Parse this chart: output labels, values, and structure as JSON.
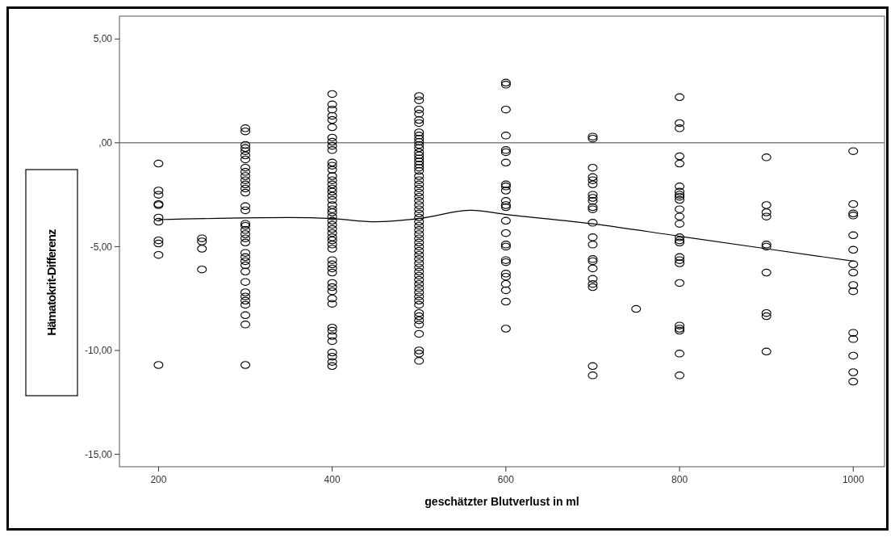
{
  "chart_data": {
    "type": "scatter",
    "xlabel": "geschätzter Blutverlust in ml",
    "ylabel": "Hämatokrit-Differenz",
    "xlim": [
      155,
      1036
    ],
    "ylim": [
      -15.6,
      6.1
    ],
    "xticks": [
      200,
      400,
      600,
      800,
      1000
    ],
    "yticks": [
      {
        "value": 5,
        "label": "5,00"
      },
      {
        "value": 0,
        "label": ",00"
      },
      {
        "value": -5,
        "label": "-5,00"
      },
      {
        "value": -10,
        "label": "-10,00"
      },
      {
        "value": -15,
        "label": "-15,00"
      }
    ],
    "marker": "circle",
    "ref_lines": [
      {
        "axis": "y",
        "value": 0,
        "color": "#808080"
      }
    ],
    "series": [
      {
        "color": "#000000",
        "x": [
          200,
          200,
          200,
          200,
          200,
          200,
          200,
          200,
          200,
          200,
          200
        ],
        "values": [
          -1.0,
          -2.3,
          -2.5,
          -2.95,
          -3.0,
          -3.6,
          -3.8,
          -4.7,
          -4.85,
          -5.4,
          -10.7
        ]
      },
      {
        "color": "#000000",
        "x": [
          250,
          250,
          250,
          250
        ],
        "values": [
          -4.6,
          -4.75,
          -5.1,
          -6.1
        ]
      },
      {
        "color": "#000000",
        "x": [
          300,
          300,
          300,
          300,
          300,
          300,
          300,
          300,
          300,
          300,
          300,
          300,
          300,
          300,
          300,
          300,
          300,
          300,
          300,
          300,
          300,
          300,
          300,
          300,
          300,
          300,
          300,
          300,
          300,
          300,
          300,
          300,
          300,
          300,
          300
        ],
        "values": [
          0.7,
          0.55,
          -0.1,
          -0.25,
          -0.4,
          -0.6,
          -0.8,
          -1.2,
          -1.4,
          -1.6,
          -1.8,
          -2.0,
          -2.2,
          -2.4,
          -3.05,
          -3.25,
          -3.9,
          -4.0,
          -4.2,
          -4.4,
          -4.6,
          -4.8,
          -5.3,
          -5.5,
          -5.7,
          -5.9,
          -6.2,
          -6.7,
          -7.2,
          -7.4,
          -7.6,
          -7.8,
          -8.3,
          -8.75,
          -10.7
        ]
      },
      {
        "color": "#000000",
        "x": [
          400,
          400,
          400,
          400,
          400,
          400,
          400,
          400,
          400,
          400,
          400,
          400,
          400,
          400,
          400,
          400,
          400,
          400,
          400,
          400,
          400,
          400,
          400,
          400,
          400,
          400,
          400,
          400,
          400,
          400,
          400,
          400,
          400,
          400,
          400,
          400,
          400,
          400,
          400,
          400,
          400,
          400,
          400,
          400,
          400,
          400,
          400,
          400,
          400
        ],
        "values": [
          2.35,
          1.85,
          1.6,
          1.3,
          1.1,
          0.75,
          0.25,
          0.05,
          -0.15,
          -0.35,
          -0.95,
          -1.1,
          -1.3,
          -1.6,
          -1.8,
          -2.0,
          -2.2,
          -2.35,
          -2.55,
          -2.75,
          -3.0,
          -3.2,
          -3.35,
          -3.55,
          -3.75,
          -3.95,
          -4.15,
          -4.35,
          -4.55,
          -4.7,
          -4.9,
          -5.1,
          -5.65,
          -5.85,
          -6.05,
          -6.25,
          -6.75,
          -6.95,
          -7.15,
          -7.5,
          -7.75,
          -8.9,
          -9.05,
          -9.3,
          -9.55,
          -10.1,
          -10.3,
          -10.55,
          -10.75
        ]
      },
      {
        "color": "#000000",
        "x": [
          500,
          500,
          500,
          500,
          500,
          500,
          500,
          500,
          500,
          500,
          500,
          500,
          500,
          500,
          500,
          500,
          500,
          500,
          500,
          500,
          500,
          500,
          500,
          500,
          500,
          500,
          500,
          500,
          500,
          500,
          500,
          500,
          500,
          500,
          500,
          500,
          500,
          500,
          500,
          500,
          500,
          500,
          500,
          500,
          500,
          500,
          500,
          500,
          500,
          500,
          500,
          500,
          500,
          500,
          500,
          500,
          500,
          500,
          500
        ],
        "values": [
          2.25,
          2.05,
          1.6,
          1.4,
          1.1,
          0.95,
          0.5,
          0.35,
          0.2,
          0.05,
          -0.1,
          -0.25,
          -0.45,
          -0.6,
          -0.75,
          -0.9,
          -1.05,
          -1.2,
          -1.35,
          -1.6,
          -1.8,
          -2.0,
          -2.2,
          -2.4,
          -2.6,
          -2.8,
          -3.0,
          -3.2,
          -3.4,
          -3.6,
          -3.8,
          -4.0,
          -4.2,
          -4.4,
          -4.6,
          -4.8,
          -5.0,
          -5.2,
          -5.4,
          -5.6,
          -5.8,
          -6.0,
          -6.2,
          -6.4,
          -6.6,
          -6.8,
          -7.0,
          -7.2,
          -7.4,
          -7.6,
          -7.8,
          -8.2,
          -8.35,
          -8.55,
          -8.75,
          -9.2,
          -10.0,
          -10.15,
          -10.5
        ]
      },
      {
        "color": "#000000",
        "x": [
          600,
          600,
          600,
          600,
          600,
          600,
          600,
          600,
          600,
          600,
          600,
          600,
          600,
          600,
          600,
          600,
          600,
          600,
          600,
          600,
          600,
          600,
          600,
          600,
          600
        ],
        "values": [
          2.9,
          2.8,
          1.6,
          0.35,
          -0.35,
          -0.45,
          -0.95,
          -2.0,
          -2.1,
          -2.3,
          -2.8,
          -3.0,
          -3.1,
          -3.75,
          -4.35,
          -4.9,
          -5.0,
          -5.65,
          -5.75,
          -6.3,
          -6.45,
          -6.8,
          -7.1,
          -7.65,
          -8.95
        ]
      },
      {
        "color": "#000000",
        "x": [
          700,
          700,
          700,
          700,
          700,
          700,
          700,
          700,
          700,
          700,
          700,
          700,
          700,
          700,
          700,
          700,
          700,
          700,
          700,
          700,
          700,
          700
        ],
        "values": [
          0.3,
          0.2,
          -1.2,
          -1.65,
          -1.8,
          -2.0,
          -2.5,
          -2.65,
          -2.8,
          -3.1,
          -3.2,
          -3.85,
          -4.55,
          -4.9,
          -5.6,
          -5.7,
          -6.05,
          -6.55,
          -6.8,
          -6.95,
          -10.75,
          -11.2
        ]
      },
      {
        "color": "#000000",
        "x": [
          750
        ],
        "values": [
          -8.0
        ]
      },
      {
        "color": "#000000",
        "x": [
          800,
          800,
          800,
          800,
          800,
          800,
          800,
          800,
          800,
          800,
          800,
          800,
          800,
          800,
          800,
          800,
          800,
          800,
          800,
          800,
          800,
          800,
          800,
          800,
          800
        ],
        "values": [
          2.2,
          0.95,
          0.7,
          -0.65,
          -1.0,
          -2.1,
          -2.35,
          -2.5,
          -2.6,
          -2.75,
          -3.2,
          -3.55,
          -3.9,
          -4.55,
          -4.7,
          -4.8,
          -5.5,
          -5.65,
          -5.8,
          -6.75,
          -8.8,
          -8.95,
          -9.05,
          -10.15,
          -11.2
        ]
      },
      {
        "color": "#000000",
        "x": [
          900,
          900,
          900,
          900,
          900,
          900,
          900,
          900,
          900,
          900
        ],
        "values": [
          -0.7,
          -3.0,
          -3.35,
          -3.55,
          -4.9,
          -5.0,
          -6.25,
          -8.2,
          -8.35,
          -10.05
        ]
      },
      {
        "color": "#000000",
        "x": [
          1000,
          1000,
          1000,
          1000,
          1000,
          1000,
          1000,
          1000,
          1000,
          1000,
          1000,
          1000,
          1000,
          1000,
          1000
        ],
        "values": [
          -0.4,
          -2.95,
          -3.4,
          -3.5,
          -4.45,
          -5.15,
          -5.85,
          -6.25,
          -6.85,
          -7.15,
          -9.15,
          -9.45,
          -10.25,
          -11.05,
          -11.5
        ]
      },
      {
        "type": "line",
        "marker": "none",
        "color": "#000000",
        "x": [
          200,
          350,
          400,
          450,
          500,
          560,
          600,
          700,
          800,
          900,
          1000
        ],
        "values": [
          -3.7,
          -3.6,
          -3.65,
          -3.8,
          -3.65,
          -3.25,
          -3.45,
          -3.9,
          -4.5,
          -5.1,
          -5.7
        ]
      }
    ]
  }
}
